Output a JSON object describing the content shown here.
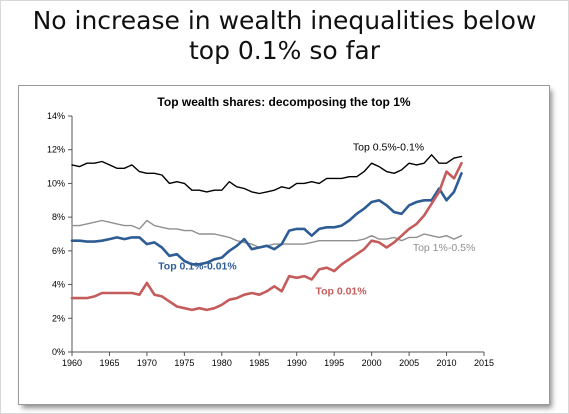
{
  "slide": {
    "title_line1": "No increase in wealth inequalities below",
    "title_line2": "top 0.1% so far"
  },
  "chart_data": {
    "type": "line",
    "title": "Top wealth shares: decomposing the top 1%",
    "xlabel": "",
    "ylabel": "",
    "xlim": [
      1960,
      2015
    ],
    "ylim": [
      0,
      14
    ],
    "x_ticks": [
      1960,
      1965,
      1970,
      1975,
      1980,
      1985,
      1990,
      1995,
      2000,
      2005,
      2010,
      2015
    ],
    "y_ticks": [
      0,
      2,
      4,
      6,
      8,
      10,
      12,
      14
    ],
    "y_tick_labels": [
      "0%",
      "2%",
      "4%",
      "6%",
      "8%",
      "10%",
      "12%",
      "14%"
    ],
    "grid": false,
    "legend": "inline labels",
    "x": [
      1960,
      1961,
      1962,
      1963,
      1964,
      1965,
      1966,
      1967,
      1968,
      1969,
      1970,
      1971,
      1972,
      1973,
      1974,
      1975,
      1976,
      1977,
      1978,
      1979,
      1980,
      1981,
      1982,
      1983,
      1984,
      1985,
      1986,
      1987,
      1988,
      1989,
      1990,
      1991,
      1992,
      1993,
      1994,
      1995,
      1996,
      1997,
      1998,
      1999,
      2000,
      2001,
      2002,
      2003,
      2004,
      2005,
      2006,
      2007,
      2008,
      2009,
      2010,
      2011,
      2012
    ],
    "series": [
      {
        "name": "Top 0.5%-0.1%",
        "color": "#000000",
        "width": 1.4,
        "values": [
          11.1,
          11.0,
          11.2,
          11.2,
          11.3,
          11.1,
          10.9,
          10.9,
          11.1,
          10.7,
          10.6,
          10.6,
          10.5,
          10.0,
          10.1,
          10.0,
          9.6,
          9.6,
          9.5,
          9.6,
          9.6,
          10.1,
          9.8,
          9.7,
          9.5,
          9.4,
          9.5,
          9.6,
          9.8,
          9.7,
          10.0,
          10.0,
          10.1,
          10.0,
          10.3,
          10.3,
          10.3,
          10.4,
          10.4,
          10.7,
          11.2,
          11.0,
          10.7,
          10.6,
          10.8,
          11.2,
          11.1,
          11.2,
          11.7,
          11.2,
          11.2,
          11.5,
          11.6
        ]
      },
      {
        "name": "Top 1%-0.5%",
        "color": "#8f8f8f",
        "width": 1.4,
        "values": [
          7.5,
          7.5,
          7.6,
          7.7,
          7.8,
          7.7,
          7.6,
          7.5,
          7.5,
          7.3,
          7.8,
          7.5,
          7.4,
          7.3,
          7.3,
          7.2,
          7.2,
          7.0,
          7.0,
          7.0,
          6.9,
          6.8,
          6.6,
          6.5,
          6.4,
          6.2,
          6.3,
          6.4,
          6.4,
          6.4,
          6.4,
          6.4,
          6.5,
          6.6,
          6.6,
          6.6,
          6.6,
          6.6,
          6.6,
          6.7,
          6.9,
          6.7,
          6.7,
          6.8,
          6.6,
          6.8,
          6.8,
          7.0,
          6.9,
          6.8,
          6.9,
          6.7,
          6.9
        ]
      },
      {
        "name": "Top 0.1%-0.01%",
        "color": "#2e5d96",
        "width": 2.6,
        "values": [
          6.6,
          6.6,
          6.55,
          6.55,
          6.6,
          6.7,
          6.8,
          6.7,
          6.8,
          6.8,
          6.4,
          6.5,
          6.2,
          5.7,
          5.8,
          5.4,
          5.2,
          5.2,
          5.3,
          5.5,
          5.6,
          6.0,
          6.3,
          6.7,
          6.1,
          6.2,
          6.3,
          6.1,
          6.4,
          7.2,
          7.3,
          7.3,
          6.9,
          7.3,
          7.4,
          7.4,
          7.5,
          7.8,
          8.2,
          8.5,
          8.9,
          9.0,
          8.7,
          8.3,
          8.2,
          8.7,
          8.9,
          9.0,
          9.0,
          9.7,
          9.0,
          9.5,
          10.6
        ]
      },
      {
        "name": "Top 0.01%",
        "color": "#c45c5c",
        "width": 2.6,
        "values": [
          3.2,
          3.2,
          3.2,
          3.3,
          3.5,
          3.5,
          3.5,
          3.5,
          3.5,
          3.4,
          4.1,
          3.4,
          3.3,
          3.0,
          2.7,
          2.6,
          2.5,
          2.6,
          2.5,
          2.6,
          2.8,
          3.1,
          3.2,
          3.4,
          3.5,
          3.4,
          3.6,
          3.9,
          3.6,
          4.5,
          4.4,
          4.5,
          4.3,
          4.9,
          5.0,
          4.8,
          5.2,
          5.5,
          5.8,
          6.1,
          6.6,
          6.5,
          6.2,
          6.5,
          6.9,
          7.3,
          7.6,
          8.1,
          8.8,
          9.5,
          10.7,
          10.3,
          11.2
        ]
      }
    ],
    "annotations": [
      {
        "text": "Top 0.5%-0.1%",
        "series": 0,
        "x": 1997.5,
        "y": 11.95,
        "color": "#000000",
        "bold": false
      },
      {
        "text": "Top 1%-0.5%",
        "series": 1,
        "x": 2005.5,
        "y": 6.0,
        "color": "#8f8f8f",
        "bold": false
      },
      {
        "text": "Top 0.1%-0.01%",
        "series": 2,
        "x": 1971.5,
        "y": 4.9,
        "color": "#2e5d96",
        "bold": true
      },
      {
        "text": "Top 0.01%",
        "series": 3,
        "x": 1992.5,
        "y": 3.4,
        "color": "#c45c5c",
        "bold": true
      }
    ]
  }
}
